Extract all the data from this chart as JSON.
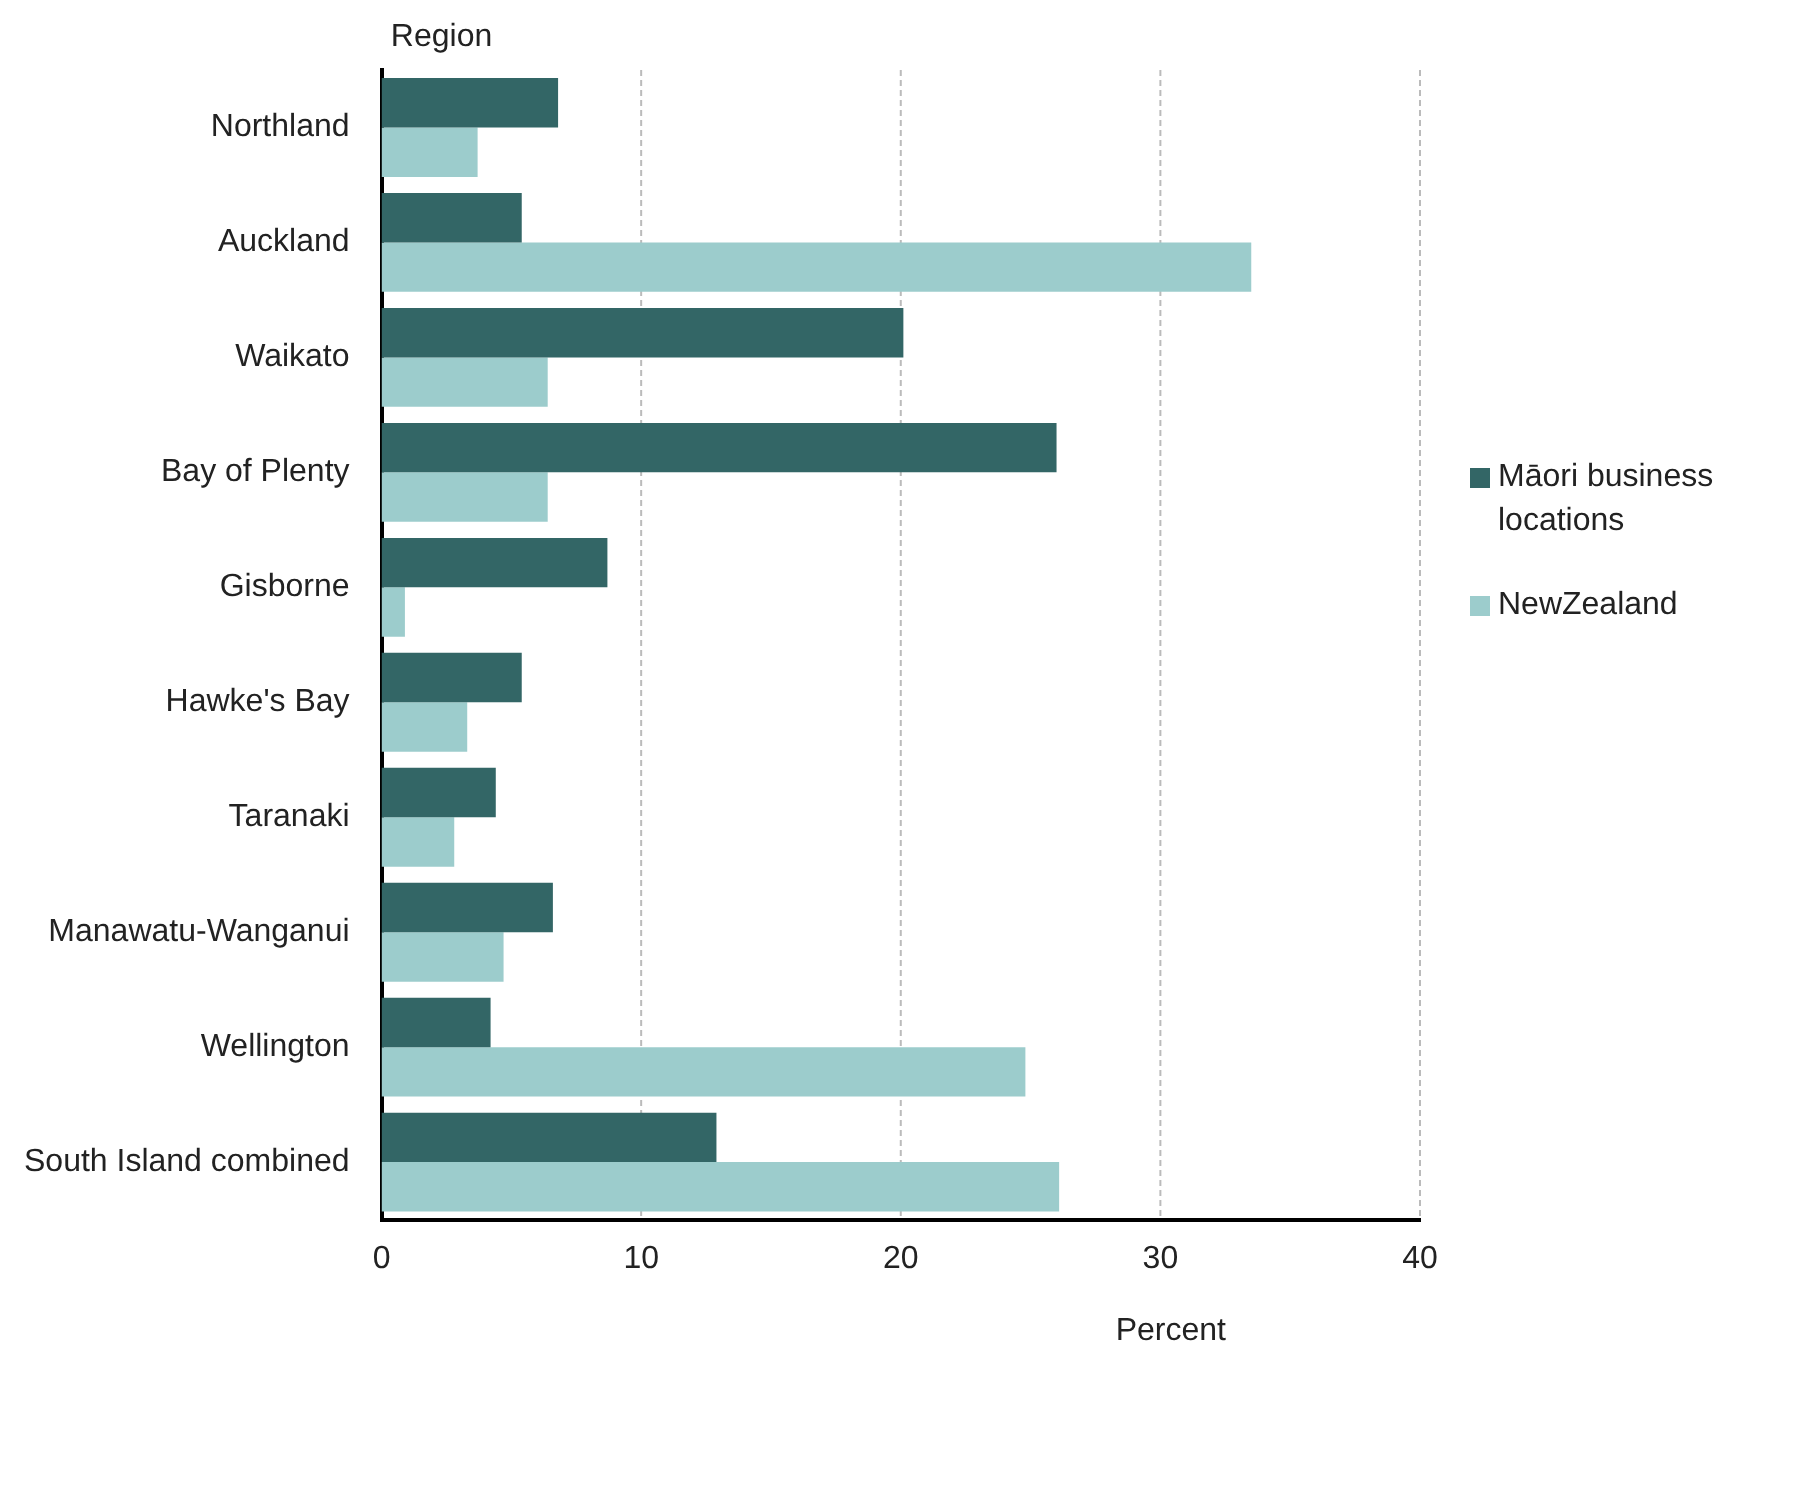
{
  "chart_data": {
    "type": "bar",
    "orientation": "horizontal",
    "xlabel": "Percent",
    "ylabel": "Region",
    "categories": [
      "Northland",
      "Auckland",
      "Waikato",
      "Bay of Plenty",
      "Gisborne",
      "Hawke's Bay",
      "Taranaki",
      "Manawatu-Wanganui",
      "Wellington",
      "South Island combined"
    ],
    "series": [
      {
        "name": "Māori business locations",
        "color": "#336666",
        "values": [
          6.8,
          5.4,
          20.1,
          26.0,
          8.7,
          5.4,
          4.4,
          6.6,
          4.2,
          12.9
        ]
      },
      {
        "name": "NewZealand",
        "color": "#9ccccc",
        "values": [
          3.7,
          33.5,
          6.4,
          6.4,
          0.9,
          3.3,
          2.8,
          4.7,
          24.8,
          26.1
        ]
      }
    ],
    "xlim": [
      0,
      40
    ],
    "xticks": [
      0,
      10,
      20,
      30,
      40
    ],
    "grid": "x",
    "legend": "right"
  }
}
